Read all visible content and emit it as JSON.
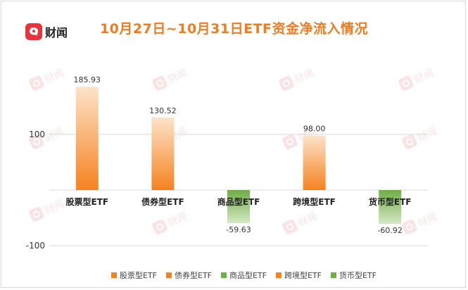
{
  "brand": {
    "name": "财闻",
    "color": "#e8323c"
  },
  "colors": {
    "inflow": "#f58220",
    "outflow": "#70ad47",
    "title": "#f07c22"
  },
  "chart_data": {
    "type": "bar",
    "title": "10月27日~10月31日ETF资金净流入情况",
    "categories": [
      "股票型ETF",
      "债券型ETF",
      "商品型ETF",
      "跨境型ETF",
      "货币型ETF"
    ],
    "values": [
      185.93,
      130.52,
      -59.63,
      98.0,
      -60.92
    ],
    "value_labels": [
      "185.93",
      "130.52",
      "-59.63",
      "98.00",
      "-60.92"
    ],
    "yticks": [
      "100",
      "-100"
    ],
    "ylim": [
      -100,
      200
    ],
    "xlabel": "",
    "ylabel": "",
    "grid": true,
    "legend": {
      "position": "bottom",
      "entries": [
        "股票型ETF",
        "债券型ETF",
        "商品型ETF",
        "跨境型ETF",
        "货币型ETF"
      ]
    }
  }
}
